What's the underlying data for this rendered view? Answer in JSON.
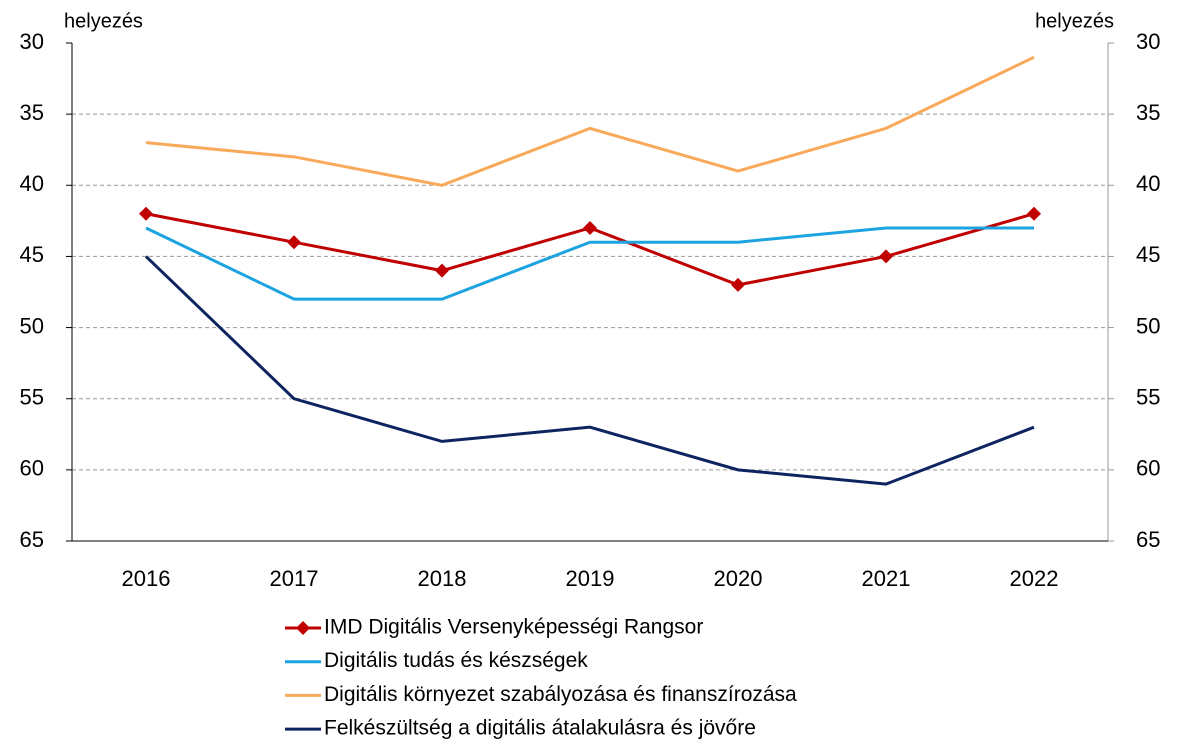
{
  "chart_data": {
    "type": "line",
    "y_label": "helyezés",
    "y2_label": "helyezés",
    "categories": [
      "2016",
      "2017",
      "2018",
      "2019",
      "2020",
      "2021",
      "2022"
    ],
    "series": [
      {
        "name": "IMD Digitális Versenyképességi Rangsor",
        "color": "#c00000",
        "marker": "diamond",
        "values": [
          42,
          44,
          46,
          43,
          47,
          45,
          42
        ]
      },
      {
        "name": "Digitális tudás és készségek",
        "color": "#1ca3e0",
        "values": [
          43,
          48,
          48,
          44,
          44,
          43,
          43
        ]
      },
      {
        "name": "Digitális környezet szabályozása és finanszírozása",
        "color": "#f9a95a",
        "values": [
          37,
          38,
          40,
          36,
          39,
          36,
          31
        ]
      },
      {
        "name": "Felkészültség a digitális átalakulásra és jövőre",
        "color": "#0d2460",
        "values": [
          45,
          55,
          58,
          57,
          60,
          61,
          57
        ]
      }
    ],
    "ylim": [
      30,
      65
    ],
    "yticks": [
      30,
      35,
      40,
      45,
      50,
      55,
      60,
      65
    ],
    "y_inverted": true,
    "y2lim": [
      30,
      65
    ],
    "y2ticks": [
      30,
      35,
      40,
      45,
      50,
      55,
      60,
      65
    ],
    "grid": true,
    "legend": "bottom"
  }
}
